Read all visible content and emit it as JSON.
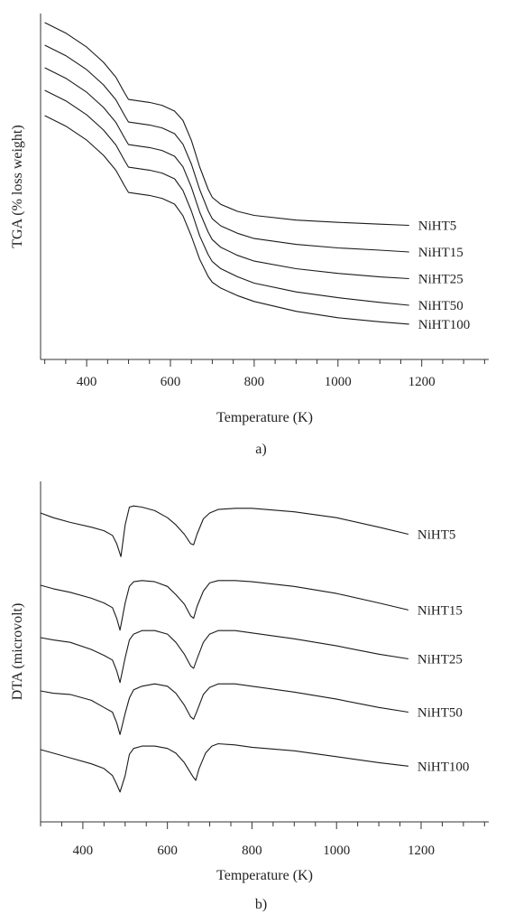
{
  "chart_data": [
    {
      "type": "line",
      "panel_label": "a)",
      "xlabel": "Temperature (K)",
      "ylabel": "TGA (% loss weight)",
      "xlim": [
        290,
        1360
      ],
      "xticks": [
        400,
        600,
        800,
        1000,
        1200
      ],
      "yticks_shown": false,
      "series": [
        {
          "name": "NiHT5",
          "x": [
            300,
            350,
            400,
            440,
            470,
            490,
            500,
            520,
            550,
            580,
            610,
            630,
            650,
            670,
            690,
            700,
            720,
            760,
            800,
            900,
            1000,
            1100,
            1170
          ],
          "y": [
            100,
            98.2,
            95.8,
            93.2,
            90.6,
            88.0,
            86.8,
            86.6,
            86.3,
            85.8,
            84.8,
            83.2,
            79.8,
            75.2,
            71.4,
            70.0,
            68.8,
            67.6,
            66.9,
            66.1,
            65.7,
            65.4,
            65.2
          ]
        },
        {
          "name": "NiHT15",
          "x": [
            300,
            350,
            400,
            440,
            470,
            490,
            500,
            520,
            550,
            580,
            610,
            630,
            650,
            670,
            690,
            700,
            720,
            760,
            800,
            900,
            1000,
            1100,
            1170
          ],
          "y": [
            100,
            98.2,
            95.8,
            93.2,
            90.6,
            88.0,
            86.8,
            86.6,
            86.3,
            85.8,
            84.8,
            83.0,
            79.6,
            75.2,
            71.6,
            70.2,
            69.0,
            67.7,
            66.8,
            65.8,
            65.2,
            64.8,
            64.5
          ]
        },
        {
          "name": "NiHT25",
          "x": [
            300,
            350,
            400,
            440,
            470,
            490,
            500,
            520,
            550,
            580,
            610,
            630,
            650,
            670,
            690,
            700,
            720,
            760,
            800,
            900,
            1000,
            1100,
            1170
          ],
          "y": [
            100,
            98.2,
            95.8,
            93.2,
            90.6,
            88.0,
            86.8,
            86.6,
            86.3,
            85.8,
            84.8,
            83.0,
            79.5,
            75.2,
            71.8,
            70.5,
            69.2,
            67.8,
            66.8,
            65.5,
            64.7,
            64.1,
            63.8
          ]
        },
        {
          "name": "NiHT50",
          "x": [
            300,
            350,
            400,
            440,
            470,
            490,
            500,
            520,
            550,
            580,
            610,
            630,
            650,
            670,
            690,
            700,
            720,
            760,
            800,
            900,
            1000,
            1100,
            1170
          ],
          "y": [
            100,
            98.2,
            95.8,
            93.2,
            90.6,
            88.0,
            86.8,
            86.6,
            86.3,
            85.8,
            84.8,
            82.8,
            79.3,
            75.0,
            71.8,
            70.6,
            69.4,
            68.0,
            66.9,
            65.4,
            64.4,
            63.6,
            63.1
          ]
        },
        {
          "name": "NiHT100",
          "x": [
            300,
            350,
            400,
            440,
            470,
            490,
            500,
            520,
            550,
            580,
            610,
            630,
            650,
            670,
            690,
            700,
            720,
            760,
            800,
            900,
            1000,
            1100,
            1170
          ],
          "y": [
            100,
            98.2,
            95.8,
            93.2,
            90.6,
            88.0,
            86.8,
            86.6,
            86.3,
            85.8,
            84.8,
            82.8,
            79.3,
            75.3,
            72.4,
            71.4,
            70.4,
            69.1,
            68.1,
            66.4,
            65.3,
            64.6,
            64.2
          ]
        }
      ]
    },
    {
      "type": "line",
      "panel_label": "b)",
      "xlabel": "Temperature (K)",
      "ylabel": "DTA (microvolt)",
      "xlim": [
        300,
        1360
      ],
      "xticks": [
        400,
        600,
        800,
        1000,
        1200
      ],
      "yticks_shown": false,
      "series": [
        {
          "name": "NiHT5",
          "x": [
            300,
            330,
            370,
            420,
            450,
            470,
            480,
            490,
            500,
            510,
            520,
            540,
            570,
            600,
            620,
            640,
            655,
            662,
            670,
            685,
            700,
            720,
            760,
            800,
            900,
            1000,
            1100,
            1170
          ],
          "y": [
            0,
            -5.2,
            -10.4,
            -15.7,
            -19.6,
            -24.8,
            -33.9,
            -48.3,
            -13.1,
            6.5,
            7.8,
            6.5,
            2.6,
            -5.2,
            -13.1,
            -23.5,
            -33.9,
            -35.2,
            -23.5,
            -6.5,
            0,
            3.9,
            5.2,
            5.2,
            1.3,
            -5.2,
            -15.7,
            -23.5
          ]
        },
        {
          "name": "NiHT15",
          "x": [
            300,
            330,
            370,
            420,
            450,
            470,
            480,
            488,
            500,
            510,
            520,
            540,
            570,
            600,
            620,
            640,
            655,
            662,
            670,
            685,
            700,
            720,
            760,
            800,
            900,
            1000,
            1100,
            1170
          ],
          "y": [
            0,
            -3.9,
            -7.8,
            -14.4,
            -19.6,
            -24.8,
            -36.6,
            -49.7,
            -19.6,
            -1.3,
            3.9,
            5.2,
            3.9,
            -1.3,
            -10.4,
            -20.9,
            -33.9,
            -36.6,
            -23.5,
            -6.5,
            2.6,
            5.2,
            5.2,
            3.9,
            -1.3,
            -9.1,
            -19.6,
            -27.4
          ]
        },
        {
          "name": "NiHT25",
          "x": [
            300,
            330,
            370,
            420,
            450,
            470,
            480,
            488,
            500,
            510,
            520,
            540,
            570,
            600,
            620,
            640,
            655,
            662,
            670,
            685,
            700,
            720,
            760,
            800,
            900,
            1000,
            1100,
            1170
          ],
          "y": [
            0,
            -2.6,
            -5.2,
            -13.1,
            -19.6,
            -24.8,
            -36.6,
            -49.7,
            -22.2,
            -2.6,
            3.9,
            7.8,
            7.8,
            3.9,
            -5.2,
            -18.3,
            -31.3,
            -34.0,
            -23.5,
            -5.2,
            3.9,
            7.8,
            7.8,
            5.2,
            -1.3,
            -9.1,
            -18.3,
            -23.5
          ]
        },
        {
          "name": "NiHT50",
          "x": [
            300,
            330,
            370,
            420,
            450,
            470,
            480,
            488,
            500,
            510,
            520,
            540,
            570,
            600,
            620,
            640,
            655,
            662,
            670,
            685,
            700,
            720,
            760,
            800,
            900,
            1000,
            1100,
            1170
          ],
          "y": [
            0,
            -2.6,
            -3.9,
            -10.4,
            -18.3,
            -23.5,
            -35.2,
            -48.3,
            -24.8,
            -7.8,
            1.3,
            5.2,
            7.8,
            5.2,
            -2.6,
            -15.7,
            -28.7,
            -31.3,
            -22.2,
            -3.9,
            3.9,
            7.8,
            7.8,
            5.2,
            -1.3,
            -9.1,
            -18.3,
            -23.5
          ]
        },
        {
          "name": "NiHT100",
          "x": [
            300,
            330,
            370,
            420,
            450,
            470,
            480,
            488,
            500,
            510,
            520,
            540,
            570,
            600,
            620,
            640,
            660,
            667,
            675,
            690,
            705,
            720,
            760,
            800,
            900,
            1000,
            1100,
            1170
          ],
          "y": [
            0,
            -3.9,
            -9.1,
            -15.7,
            -20.9,
            -28.7,
            -38.4,
            -46.9,
            -28.7,
            -5.2,
            1.3,
            3.9,
            3.9,
            1.3,
            -3.9,
            -14.4,
            -29.7,
            -34.0,
            -20.9,
            -3.9,
            3.9,
            6.5,
            5.2,
            2.6,
            -1.3,
            -7.8,
            -14.4,
            -18.3
          ]
        }
      ]
    }
  ]
}
